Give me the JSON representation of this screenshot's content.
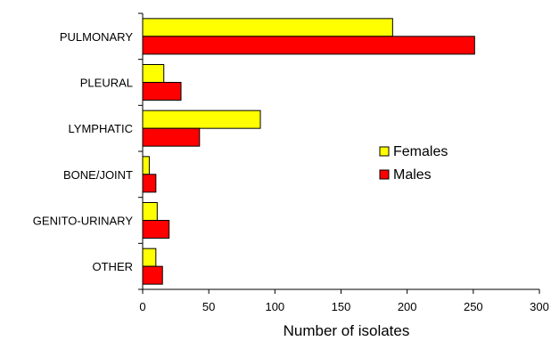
{
  "chart_data": {
    "type": "bar",
    "orientation": "horizontal",
    "title": "",
    "xlabel": "Number of isolates",
    "ylabel": "",
    "categories": [
      "PULMONARY",
      "PLEURAL",
      "LYMPHATIC",
      "BONE/JOINT",
      "GENITO-URINARY",
      "OTHER"
    ],
    "series": [
      {
        "name": "Females",
        "color": "#ffff00",
        "values": [
          189,
          16,
          89,
          5,
          11,
          10
        ]
      },
      {
        "name": "Males",
        "color": "#ff0000",
        "values": [
          251,
          29,
          43,
          10,
          20,
          15
        ]
      }
    ],
    "xlim": [
      0,
      300
    ],
    "xticks": [
      "0",
      "50",
      "100",
      "150",
      "200",
      "250",
      "300"
    ],
    "grid": false,
    "legend_position": "right-center"
  }
}
